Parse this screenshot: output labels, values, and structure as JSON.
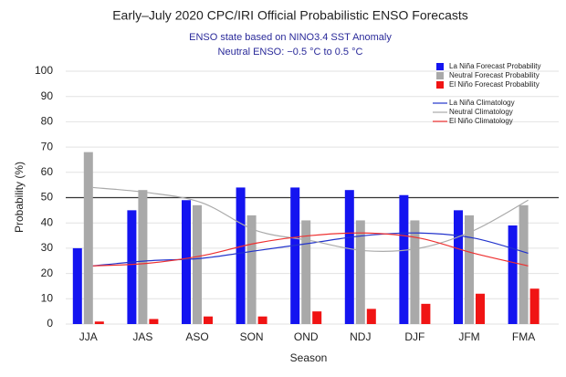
{
  "chart_data": {
    "type": "bar",
    "title": "Early–July 2020 CPC/IRI Official Probabilistic ENSO Forecasts",
    "subtitle": [
      "ENSO state based on NINO3.4 SST Anomaly",
      "Neutral ENSO: −0.5 °C to 0.5 °C"
    ],
    "x_label": "Season",
    "y_label": "Probability (%)",
    "categories": [
      "JJA",
      "JAS",
      "ASO",
      "SON",
      "OND",
      "NDJ",
      "DJF",
      "JFM",
      "FMA"
    ],
    "series": [
      {
        "name": "La Niña Forecast Probability",
        "type": "bar",
        "color": "#1414f0",
        "values": [
          30,
          45,
          49,
          54,
          54,
          53,
          51,
          45,
          39
        ]
      },
      {
        "name": "Neutral Forecast Probability",
        "type": "bar",
        "color": "#a9a9a9",
        "values": [
          68,
          53,
          47,
          43,
          41,
          41,
          41,
          43,
          47
        ]
      },
      {
        "name": "El Niño Forecast Probability",
        "type": "bar",
        "color": "#f01414",
        "values": [
          1,
          2,
          3,
          3,
          5,
          6,
          8,
          12,
          14
        ]
      },
      {
        "name": "La Niña Climatology",
        "type": "line",
        "color": "#2233cc",
        "values": [
          23,
          25,
          26,
          29,
          32,
          35,
          36,
          34,
          28
        ]
      },
      {
        "name": "Neutral Climatology",
        "type": "line",
        "color": "#aaaaaa",
        "values": [
          54,
          52,
          48,
          37,
          33,
          29,
          30,
          37,
          49
        ]
      },
      {
        "name": "El Niño Climatology",
        "type": "line",
        "color": "#ee3030",
        "values": [
          23,
          24,
          27,
          32,
          35,
          36,
          34,
          28,
          23
        ]
      }
    ],
    "reference_line": 50,
    "ylim": [
      0,
      100
    ],
    "yticks": [
      0,
      10,
      20,
      30,
      40,
      50,
      60,
      70,
      80,
      90,
      100
    ],
    "grid": true,
    "legend": "top-right"
  }
}
